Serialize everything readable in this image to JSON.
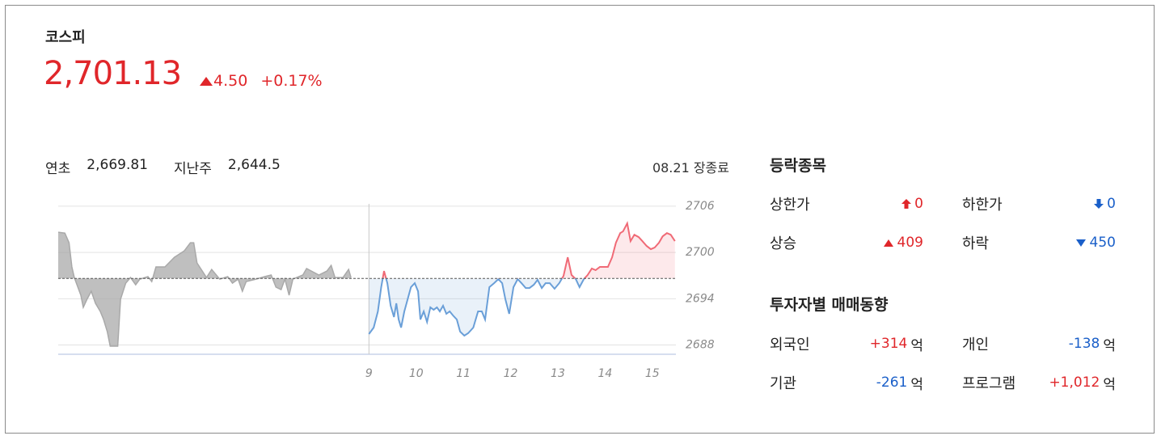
{
  "header": {
    "name": "코스피",
    "price": "2,701.13",
    "change": "4.50",
    "change_percent": "+0.17%"
  },
  "summary": {
    "items": [
      {
        "label": "연초",
        "value": "2,669.81"
      },
      {
        "label": "지난주",
        "value": "2,644.5"
      }
    ],
    "status": "08.21 장종료"
  },
  "rise_fall": {
    "title": "등락종목",
    "items": [
      {
        "label": "상한가",
        "value": "0"
      },
      {
        "label": "하한가",
        "value": "0"
      },
      {
        "label": "상승",
        "value": "409"
      },
      {
        "label": "하락",
        "value": "450"
      }
    ]
  },
  "investors": {
    "title": "투자자별 매매동향",
    "unit": "억",
    "items": [
      {
        "label": "외국인",
        "value": "+314"
      },
      {
        "label": "개인",
        "value": "-138"
      },
      {
        "label": "기관",
        "value": "-261"
      },
      {
        "label": "프로그램",
        "value": "+1,012"
      }
    ]
  },
  "chart_data": {
    "type": "line",
    "xlim": [
      2.42,
      15.5
    ],
    "ylim": [
      2686.8,
      2706.3
    ],
    "xticks": [
      9,
      10,
      11,
      12,
      13,
      14,
      15
    ],
    "yticks": [
      2688,
      2694,
      2700,
      2706
    ],
    "reference_line": 2696.63,
    "grid": true,
    "series": [
      {
        "color": "#a9a9a9",
        "x": [
          2.42,
          2.56,
          2.65,
          2.71,
          2.76,
          2.9,
          2.95,
          3.03,
          3.12,
          3.21,
          3.31,
          3.38,
          3.46,
          3.52,
          3.68,
          3.74,
          3.85,
          3.95,
          4.06,
          4.15,
          4.32,
          4.4,
          4.49,
          4.68,
          4.88,
          5.09,
          5.22,
          5.29,
          5.36,
          5.56,
          5.67,
          5.84,
          6.01,
          6.11,
          6.23,
          6.32,
          6.4,
          6.61,
          6.79,
          6.93,
          7.03,
          7.14,
          7.22,
          7.31,
          7.39,
          7.6,
          7.68,
          7.94,
          8.11,
          8.2,
          8.28,
          8.45,
          8.57,
          8.62
        ],
        "values": [
          2702.62,
          2702.51,
          2701.26,
          2698.12,
          2696.75,
          2694.45,
          2692.88,
          2693.93,
          2694.97,
          2693.4,
          2692.36,
          2691.31,
          2689.74,
          2687.85,
          2687.85,
          2693.93,
          2696.02,
          2696.75,
          2695.81,
          2696.54,
          2696.86,
          2696.23,
          2698.12,
          2698.12,
          2699.37,
          2700.21,
          2701.26,
          2701.26,
          2698.64,
          2696.75,
          2697.8,
          2696.54,
          2696.86,
          2696.02,
          2696.54,
          2694.97,
          2696.23,
          2696.54,
          2696.86,
          2697.07,
          2695.5,
          2695.18,
          2696.54,
          2694.45,
          2696.54,
          2697.07,
          2697.91,
          2697.07,
          2697.59,
          2698.32,
          2696.75,
          2696.75,
          2697.8,
          2696.75
        ]
      },
      {
        "color": "#6a9fd8",
        "color_above": "#f06a76",
        "x": [
          9.0,
          9.1,
          9.19,
          9.26,
          9.32,
          9.39,
          9.46,
          9.53,
          9.58,
          9.63,
          9.68,
          9.75,
          9.82,
          9.89,
          9.97,
          10.04,
          10.09,
          10.16,
          10.23,
          10.3,
          10.37,
          10.44,
          10.5,
          10.57,
          10.64,
          10.71,
          10.78,
          10.86,
          10.93,
          11.02,
          11.1,
          11.21,
          11.31,
          11.39,
          11.46,
          11.55,
          11.65,
          11.74,
          11.82,
          11.89,
          11.97,
          12.06,
          12.15,
          12.23,
          12.32,
          12.4,
          12.49,
          12.57,
          12.66,
          12.74,
          12.83,
          12.93,
          13.03,
          13.12,
          13.21,
          13.29,
          13.38,
          13.46,
          13.55,
          13.63,
          13.72,
          13.8,
          13.89,
          13.97,
          14.06,
          14.15,
          14.23,
          14.32,
          14.38,
          14.47,
          14.54,
          14.62,
          14.71,
          14.79,
          14.88,
          14.97,
          15.05,
          15.14,
          15.22,
          15.31,
          15.39,
          15.48
        ],
        "values": [
          2689.42,
          2690.26,
          2692.36,
          2695.5,
          2697.59,
          2696.02,
          2693.09,
          2691.62,
          2693.4,
          2691.31,
          2690.26,
          2692.36,
          2693.93,
          2695.5,
          2696.02,
          2694.97,
          2691.31,
          2692.36,
          2690.99,
          2692.88,
          2692.57,
          2692.88,
          2692.36,
          2693.09,
          2692.04,
          2692.36,
          2691.83,
          2691.31,
          2689.74,
          2689.21,
          2689.53,
          2690.26,
          2692.36,
          2692.36,
          2691.31,
          2695.5,
          2696.02,
          2696.54,
          2696.02,
          2693.93,
          2692.04,
          2695.5,
          2696.54,
          2696.02,
          2695.39,
          2695.39,
          2695.81,
          2696.44,
          2695.39,
          2696.02,
          2696.02,
          2695.29,
          2696.02,
          2696.96,
          2699.37,
          2697.07,
          2696.54,
          2695.5,
          2696.54,
          2697.07,
          2697.91,
          2697.7,
          2698.12,
          2698.12,
          2698.12,
          2699.37,
          2701.26,
          2702.51,
          2702.72,
          2703.77,
          2701.47,
          2702.3,
          2701.99,
          2701.47,
          2700.84,
          2700.42,
          2700.63,
          2701.26,
          2702.09,
          2702.51,
          2702.3,
          2701.47
        ]
      }
    ]
  }
}
